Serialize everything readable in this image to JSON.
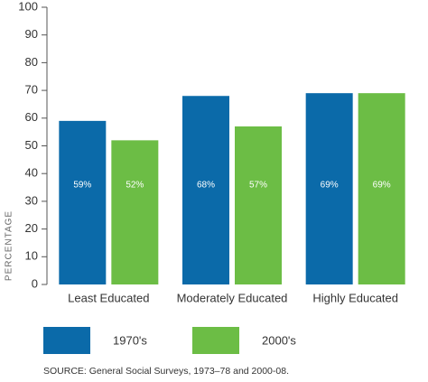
{
  "chart_data": {
    "type": "bar",
    "y_label": "PERCENTAGE",
    "categories": [
      "Least Educated",
      "Moderately Educated",
      "Highly Educated"
    ],
    "series": [
      {
        "name": "1970's",
        "color": "#0b6aa9",
        "values": [
          59,
          68,
          69
        ],
        "value_labels": [
          "59%",
          "68%",
          "69%"
        ]
      },
      {
        "name": "2000's",
        "color": "#6cbd45",
        "values": [
          52,
          57,
          69
        ],
        "value_labels": [
          "52%",
          "57%",
          "69%"
        ]
      }
    ],
    "ylim": [
      0,
      100
    ],
    "yticks": [
      0,
      10,
      20,
      30,
      40,
      50,
      60,
      70,
      80,
      90,
      100
    ],
    "source": "SOURCE: General Social Surveys, 1973–78 and 2000-08."
  }
}
